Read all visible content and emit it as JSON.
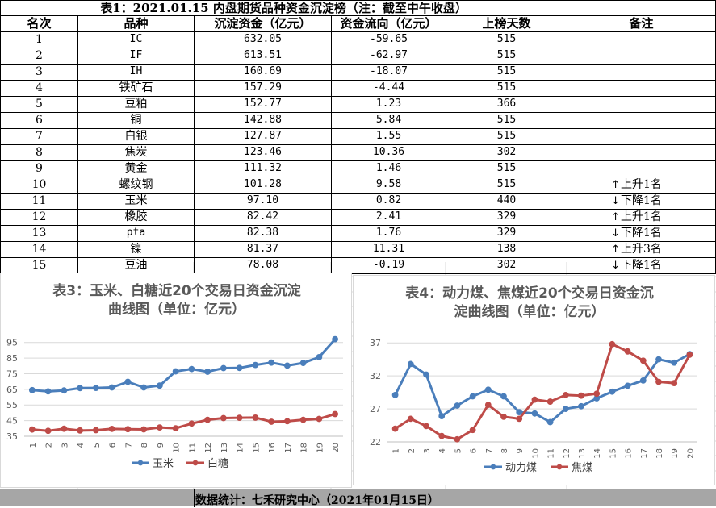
{
  "table": {
    "title": "表1：2021.01.15 内盘期货品种资金沉淀榜（注：截至中午收盘）",
    "headers": [
      "名次",
      "品种",
      "沉淀资金（亿元）",
      "资金流向（亿元）",
      "上榜天数",
      "备注"
    ],
    "rows": [
      {
        "rank": "1",
        "name": "IC",
        "capital": "632.05",
        "flow": "-59.65",
        "days": "515",
        "arrow": "",
        "note": ""
      },
      {
        "rank": "2",
        "name": "IF",
        "capital": "613.51",
        "flow": "-62.97",
        "days": "515",
        "arrow": "",
        "note": ""
      },
      {
        "rank": "3",
        "name": "IH",
        "capital": "160.69",
        "flow": "-18.07",
        "days": "515",
        "arrow": "",
        "note": ""
      },
      {
        "rank": "4",
        "name": "铁矿石",
        "capital": "157.29",
        "flow": "-4.44",
        "days": "515",
        "arrow": "",
        "note": ""
      },
      {
        "rank": "5",
        "name": "豆粕",
        "capital": "152.77",
        "flow": "1.23",
        "days": "366",
        "arrow": "",
        "note": ""
      },
      {
        "rank": "6",
        "name": "铜",
        "capital": "142.88",
        "flow": "5.84",
        "days": "515",
        "arrow": "",
        "note": ""
      },
      {
        "rank": "7",
        "name": "白银",
        "capital": "127.87",
        "flow": "1.55",
        "days": "515",
        "arrow": "",
        "note": ""
      },
      {
        "rank": "8",
        "name": "焦炭",
        "capital": "123.46",
        "flow": "10.36",
        "days": "302",
        "arrow": "",
        "note": ""
      },
      {
        "rank": "9",
        "name": "黄金",
        "capital": "111.32",
        "flow": "1.46",
        "days": "515",
        "arrow": "",
        "note": ""
      },
      {
        "rank": "10",
        "name": "螺纹钢",
        "capital": "101.28",
        "flow": "9.58",
        "days": "515",
        "arrow": "↑",
        "note": "上升1名"
      },
      {
        "rank": "11",
        "name": "玉米",
        "capital": "97.10",
        "flow": "0.82",
        "days": "440",
        "arrow": "↓",
        "note": "下降1名"
      },
      {
        "rank": "12",
        "name": "橡胶",
        "capital": "82.42",
        "flow": "2.41",
        "days": "329",
        "arrow": "↑",
        "note": "上升1名"
      },
      {
        "rank": "13",
        "name": "pta",
        "capital": "82.38",
        "flow": "1.76",
        "days": "329",
        "arrow": "↓",
        "note": "下降1名"
      },
      {
        "rank": "14",
        "name": "镍",
        "capital": "81.37",
        "flow": "11.31",
        "days": "138",
        "arrow": "↑",
        "note": "上升3名"
      },
      {
        "rank": "15",
        "name": "豆油",
        "capital": "78.08",
        "flow": "-0.19",
        "days": "302",
        "arrow": "↓",
        "note": "下降1名"
      }
    ]
  },
  "footer": {
    "text": "数据统计：七禾研究中心（2021年01月15日）"
  },
  "chart_data": [
    {
      "type": "line",
      "title_line1": "表3：玉米、白糖近20个交易日资金沉淀",
      "title_line2": "曲线图（单位：亿元）",
      "x": [
        "1",
        "2",
        "3",
        "4",
        "5",
        "6",
        "7",
        "8",
        "9",
        "10",
        "11",
        "12",
        "13",
        "14",
        "15",
        "16",
        "17",
        "18",
        "19",
        "20"
      ],
      "yticks": [
        35,
        45,
        55,
        65,
        75,
        85,
        95
      ],
      "ylim": [
        35,
        100
      ],
      "grid": true,
      "legend_position": "bottom",
      "series": [
        {
          "name": "玉米",
          "color": "#4a7ebb",
          "values": [
            64.5,
            63.7,
            64.3,
            65.8,
            65.9,
            66.2,
            69.8,
            66.2,
            67.4,
            76.5,
            78.0,
            76.3,
            78.6,
            78.7,
            80.6,
            82.1,
            80.2,
            81.9,
            85.6,
            97.1
          ]
        },
        {
          "name": "白糖",
          "color": "#be4b48",
          "values": [
            39.3,
            38.5,
            39.8,
            38.7,
            38.9,
            39.7,
            39.5,
            39.4,
            40.6,
            40.1,
            43.1,
            45.5,
            46.6,
            46.8,
            46.9,
            44.3,
            44.6,
            45.5,
            46.1,
            49.2
          ]
        }
      ]
    },
    {
      "type": "line",
      "title_line1": "表4：动力煤、焦煤近20个交易日资金沉",
      "title_line2": "淀曲线图（单位：亿元）",
      "x": [
        "1",
        "2",
        "3",
        "4",
        "5",
        "6",
        "7",
        "8",
        "9",
        "10",
        "11",
        "12",
        "13",
        "14",
        "15",
        "16",
        "17",
        "18",
        "19",
        "20"
      ],
      "yticks": [
        22,
        27,
        32,
        37
      ],
      "ylim": [
        22,
        38
      ],
      "grid": true,
      "legend_position": "bottom",
      "series": [
        {
          "name": "动力煤",
          "color": "#4a7ebb",
          "values": [
            29.1,
            33.8,
            32.2,
            25.9,
            27.5,
            28.9,
            29.9,
            28.9,
            26.5,
            26.3,
            25.0,
            27.0,
            27.4,
            28.6,
            29.6,
            30.5,
            31.3,
            34.5,
            34.0,
            35.3
          ]
        },
        {
          "name": "焦煤",
          "color": "#be4b48",
          "values": [
            24.0,
            25.5,
            24.4,
            22.9,
            22.4,
            23.8,
            27.6,
            25.8,
            25.5,
            28.4,
            28.1,
            29.1,
            29.0,
            29.3,
            36.8,
            35.7,
            34.3,
            31.1,
            30.9,
            35.2
          ]
        }
      ]
    }
  ]
}
